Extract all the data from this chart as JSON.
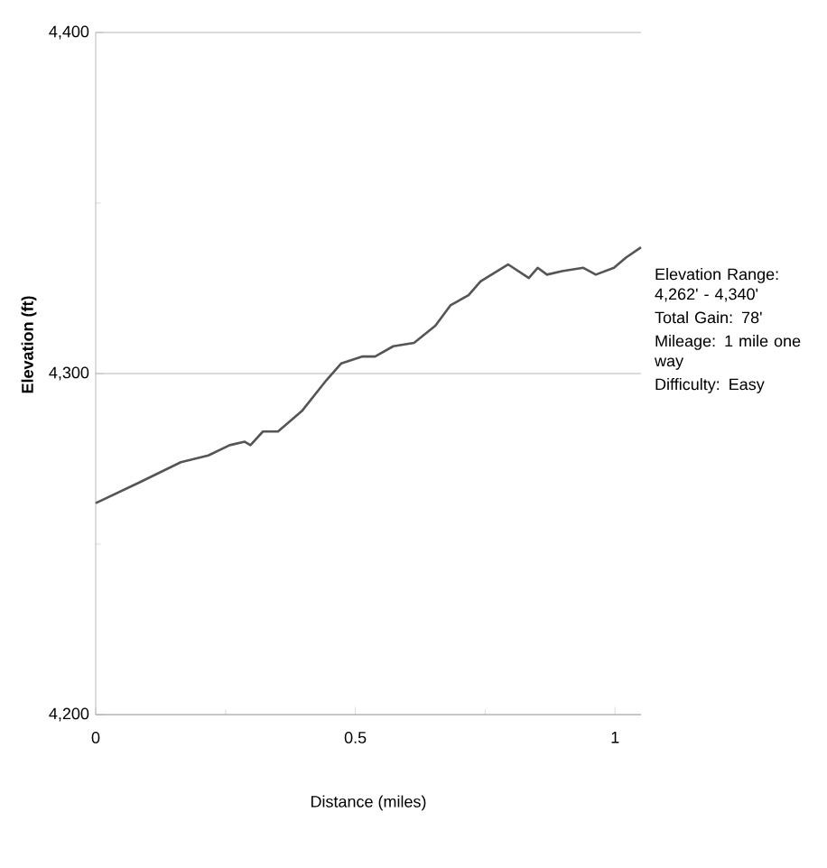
{
  "chart_data": {
    "type": "line",
    "xlabel": "Distance (miles)",
    "ylabel": "Elevation (ft)",
    "x": [
      0,
      0.083,
      0.164,
      0.217,
      0.258,
      0.287,
      0.298,
      0.322,
      0.351,
      0.397,
      0.444,
      0.473,
      0.514,
      0.538,
      0.573,
      0.613,
      0.654,
      0.683,
      0.718,
      0.741,
      0.794,
      0.834,
      0.851,
      0.869,
      0.898,
      0.939,
      0.963,
      0.998,
      1.021,
      1.05
    ],
    "series": [
      {
        "color": "#555555",
        "values": [
          4262,
          4268,
          4274,
          4276,
          4279,
          4280,
          4279,
          4283,
          4283,
          4289,
          4298,
          4303,
          4305,
          4305,
          4308,
          4309,
          4314,
          4320,
          4323,
          4327,
          4332,
          4328,
          4331,
          4329,
          4330,
          4331,
          4329,
          4331,
          4334,
          4337
        ]
      }
    ],
    "xlim": [
      0,
      1.05
    ],
    "xticks": [
      0,
      0.5,
      1
    ],
    "ylim": [
      4200,
      4400
    ],
    "yticks": [
      {
        "value": 4200,
        "label": "4,200"
      },
      {
        "value": 4300,
        "label": "4,300"
      },
      {
        "value": 4400,
        "label": "4,400"
      }
    ],
    "grid": "y",
    "marker": "none",
    "line_style": "solid",
    "annotations": [
      "Elevation Range: 4,262' - 4,340'",
      "Total Gain: 78'",
      "Mileage: 1 mile one way",
      "Difficulty: Easy"
    ]
  }
}
